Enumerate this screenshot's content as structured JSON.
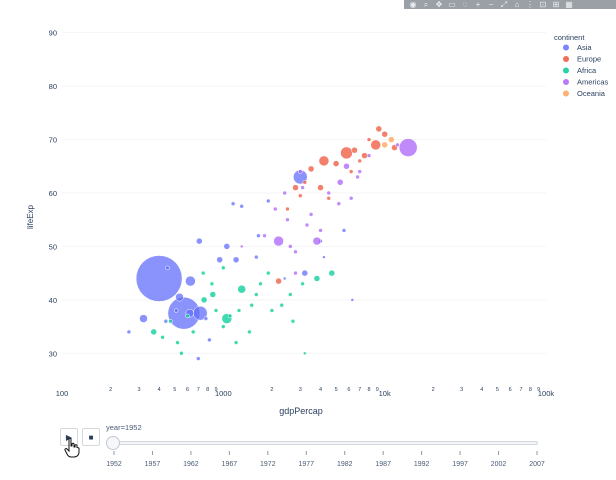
{
  "modebar": {
    "icons": [
      "camera-icon",
      "zoom-icon",
      "pan-icon",
      "box-select-icon",
      "lasso-icon",
      "zoom-in-icon",
      "zoom-out-icon",
      "autoscale-icon",
      "reset-axes-icon",
      "spike-lines-icon",
      "hover-closest-icon",
      "hover-compare-icon",
      "plotly-logo-icon"
    ]
  },
  "legend": {
    "title": "continent"
  },
  "animation": {
    "play_icon": "▶",
    "stop_icon": "■",
    "current_label": "year=1952"
  },
  "chart_data": {
    "type": "scatter",
    "subtype": "bubble",
    "xlabel": "gdpPercap",
    "ylabel": "lifeExp",
    "xscale": "log",
    "xlim": [
      100,
      100000
    ],
    "ylim": [
      25,
      92
    ],
    "x_ticks": [
      {
        "v": 100,
        "t": "100"
      },
      {
        "v": 200,
        "t": "2"
      },
      {
        "v": 300,
        "t": "3"
      },
      {
        "v": 400,
        "t": "4"
      },
      {
        "v": 500,
        "t": "5"
      },
      {
        "v": 600,
        "t": "6"
      },
      {
        "v": 700,
        "t": "7"
      },
      {
        "v": 800,
        "t": "8"
      },
      {
        "v": 900,
        "t": "9"
      },
      {
        "v": 1000,
        "t": "1000"
      },
      {
        "v": 2000,
        "t": "2"
      },
      {
        "v": 3000,
        "t": "3"
      },
      {
        "v": 4000,
        "t": "4"
      },
      {
        "v": 5000,
        "t": "5"
      },
      {
        "v": 6000,
        "t": "6"
      },
      {
        "v": 7000,
        "t": "7"
      },
      {
        "v": 8000,
        "t": "8"
      },
      {
        "v": 9000,
        "t": "9"
      },
      {
        "v": 10000,
        "t": "10k"
      },
      {
        "v": 20000,
        "t": "2"
      },
      {
        "v": 30000,
        "t": "3"
      },
      {
        "v": 40000,
        "t": "4"
      },
      {
        "v": 50000,
        "t": "5"
      },
      {
        "v": 60000,
        "t": "6"
      },
      {
        "v": 70000,
        "t": "7"
      },
      {
        "v": 80000,
        "t": "8"
      },
      {
        "v": 90000,
        "t": "9"
      },
      {
        "v": 100000,
        "t": "100k"
      }
    ],
    "y_ticks": [
      30,
      40,
      50,
      60,
      70,
      80,
      90
    ],
    "legend_placement": "top-right",
    "series": [
      {
        "name": "Asia",
        "color": "#636efa",
        "points": [
          [
            400,
            44,
            23
          ],
          [
            570,
            37.5,
            16
          ],
          [
            720,
            37.5,
            7
          ],
          [
            625,
            43.5,
            5
          ],
          [
            535,
            40.5,
            4
          ],
          [
            620,
            37.5,
            4
          ],
          [
            320,
            36.5,
            4
          ],
          [
            710,
            51,
            3
          ],
          [
            950,
            47.5,
            3
          ],
          [
            1050,
            50,
            3
          ],
          [
            1200,
            47.5,
            3
          ],
          [
            1150,
            58,
            2
          ],
          [
            3000,
            63,
            7
          ],
          [
            4000,
            51,
            2
          ],
          [
            3200,
            45,
            3
          ],
          [
            820,
            32.5,
            2
          ],
          [
            700,
            29,
            2
          ],
          [
            440,
            36,
            2
          ],
          [
            1300,
            57.5,
            2
          ],
          [
            1600,
            48,
            2
          ],
          [
            510,
            38,
            2
          ],
          [
            1900,
            58.5,
            2
          ],
          [
            5600,
            53,
            2
          ],
          [
            6300,
            40,
            1.5
          ],
          [
            450,
            46,
            2
          ],
          [
            780,
            36.5,
            2
          ],
          [
            1650,
            52,
            2
          ],
          [
            2400,
            44,
            1.5
          ],
          [
            260,
            34,
            2
          ],
          [
            4200,
            48,
            1.5
          ]
        ]
      },
      {
        "name": "Europe",
        "color": "#ef553b",
        "points": [
          [
            5800,
            67.5,
            6
          ],
          [
            8800,
            69,
            5
          ],
          [
            4200,
            66,
            5
          ],
          [
            3500,
            64.5,
            3
          ],
          [
            6500,
            68,
            3
          ],
          [
            2800,
            61,
            3
          ],
          [
            2200,
            43.5,
            3
          ],
          [
            10000,
            71,
            3
          ],
          [
            11500,
            68.5,
            3
          ],
          [
            7500,
            67,
            3
          ],
          [
            5000,
            65.5,
            3
          ],
          [
            3000,
            59.5,
            2
          ],
          [
            2500,
            57,
            2
          ],
          [
            9200,
            72,
            3
          ],
          [
            8000,
            70,
            2
          ],
          [
            7000,
            66,
            2
          ],
          [
            4000,
            61,
            3
          ],
          [
            3200,
            62,
            2
          ],
          [
            4500,
            59,
            2
          ],
          [
            6200,
            64,
            2
          ]
        ]
      },
      {
        "name": "Africa",
        "color": "#00cc96",
        "points": [
          [
            1050,
            36.5,
            5
          ],
          [
            1300,
            42,
            4
          ],
          [
            4700,
            45,
            3
          ],
          [
            3800,
            44,
            3
          ],
          [
            860,
            41,
            3
          ],
          [
            1500,
            39,
            2
          ],
          [
            370,
            34,
            3
          ],
          [
            600,
            37,
            2
          ],
          [
            760,
            40,
            3
          ],
          [
            1000,
            35,
            2
          ],
          [
            1700,
            43,
            2
          ],
          [
            2000,
            38,
            2
          ],
          [
            2600,
            41,
            2
          ],
          [
            470,
            36,
            2
          ],
          [
            520,
            32,
            2
          ],
          [
            1200,
            32,
            2
          ],
          [
            3200,
            30,
            1.5
          ],
          [
            2300,
            39,
            2
          ],
          [
            1600,
            41,
            2
          ],
          [
            900,
            38,
            2
          ],
          [
            650,
            34,
            2
          ],
          [
            850,
            43,
            2
          ],
          [
            1250,
            38,
            2
          ],
          [
            1900,
            45,
            2
          ],
          [
            3100,
            43,
            2
          ],
          [
            550,
            30,
            2
          ],
          [
            1450,
            34,
            2
          ],
          [
            750,
            45,
            2
          ],
          [
            2700,
            36,
            2
          ],
          [
            1000,
            46,
            2
          ],
          [
            420,
            33,
            2
          ],
          [
            1100,
            37,
            2
          ]
        ]
      },
      {
        "name": "Americas",
        "color": "#ab63fa",
        "points": [
          [
            14000,
            68.5,
            9
          ],
          [
            2200,
            51,
            5
          ],
          [
            3800,
            51,
            4
          ],
          [
            5300,
            62,
            3
          ],
          [
            2800,
            49,
            2
          ],
          [
            3000,
            64,
            2
          ],
          [
            7000,
            64,
            2
          ],
          [
            5800,
            65,
            3
          ],
          [
            3500,
            56,
            2
          ],
          [
            2500,
            55,
            2
          ],
          [
            12000,
            69,
            2
          ],
          [
            4500,
            60,
            2
          ],
          [
            6200,
            59,
            2
          ],
          [
            3100,
            61,
            2
          ],
          [
            2100,
            57,
            2
          ],
          [
            4000,
            53,
            2
          ],
          [
            2800,
            45,
            2
          ],
          [
            1800,
            52,
            2
          ],
          [
            8000,
            67,
            2
          ],
          [
            2400,
            60,
            2
          ],
          [
            6800,
            63,
            2
          ],
          [
            3300,
            54,
            2
          ],
          [
            5200,
            58,
            2
          ],
          [
            2600,
            50,
            2
          ],
          [
            1300,
            50,
            1.5
          ]
        ]
      },
      {
        "name": "Oceania",
        "color": "#ffa15a",
        "points": [
          [
            10000,
            69,
            3
          ],
          [
            11000,
            70,
            3
          ]
        ]
      }
    ]
  },
  "slider": {
    "steps": [
      "1952",
      "1957",
      "1962",
      "1967",
      "1972",
      "1977",
      "1982",
      "1987",
      "1992",
      "1997",
      "2002",
      "2007"
    ],
    "current_index": 0
  }
}
